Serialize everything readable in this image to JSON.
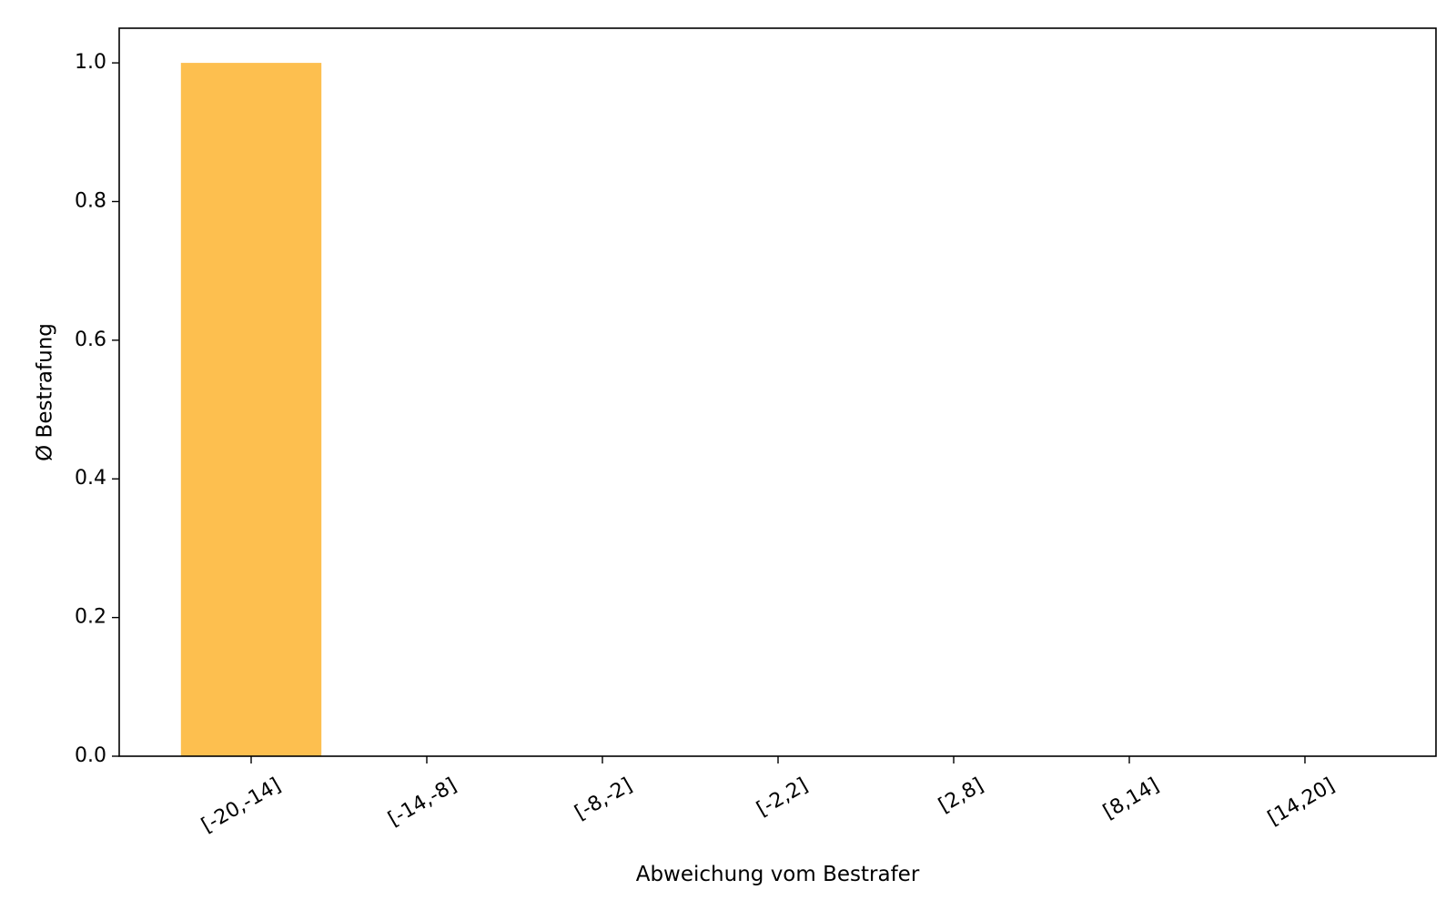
{
  "chart_data": {
    "type": "bar",
    "categories": [
      "[-20,-14]",
      "[-14,-8]",
      "[-8,-2]",
      "[-2,2]",
      "[2,8]",
      "[8,14]",
      "[14,20]"
    ],
    "values": [
      1.0,
      0,
      0,
      0,
      0,
      0,
      0
    ],
    "xlabel": "Abweichung vom Bestrafer",
    "ylabel": "Ø Bestrafung",
    "ylim": [
      0,
      1.05
    ],
    "yticks": [
      0.0,
      0.2,
      0.4,
      0.6,
      0.8,
      1.0
    ],
    "ytick_labels": [
      "0.0",
      "0.2",
      "0.4",
      "0.6",
      "0.8",
      "1.0"
    ],
    "bar_color": "#fdbf4f",
    "grid": false,
    "legend": "none"
  }
}
